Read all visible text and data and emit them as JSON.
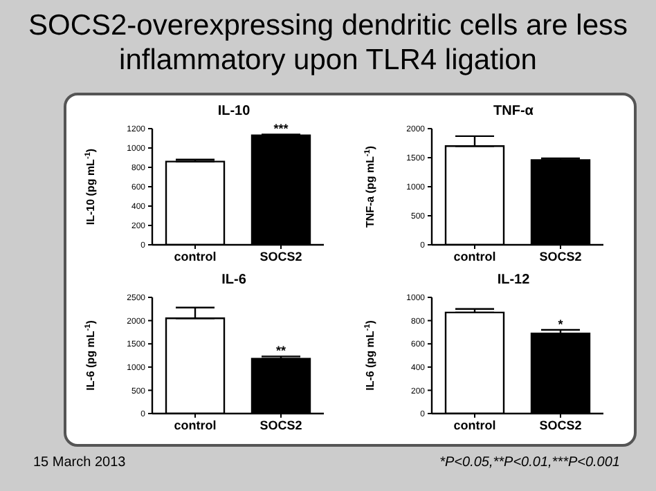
{
  "chart_data": [
    {
      "type": "bar",
      "title": "IL-10",
      "ylabel": "IL-10 (pg mL$^{-1}$)",
      "categories": [
        "control",
        "SOCS2"
      ],
      "values": [
        860,
        1130
      ],
      "colors": [
        "#ffffff",
        "#000000"
      ],
      "errors": [
        [
          860,
          880
        ],
        [
          1130,
          1140
        ]
      ],
      "ylim": [
        0,
        1200
      ],
      "yticks": [
        0,
        200,
        400,
        600,
        800,
        1000,
        1200
      ],
      "grid": false,
      "legend": false,
      "annotations": [
        "SOCS2-overexpressing dendritic cells are less inflammatory upon TLR4 ligation",
        {
          "text": "***",
          "x": "SOCS2",
          "y": 1140
        }
      ]
    },
    {
      "type": "bar",
      "title": "TNF-α",
      "ylabel": "TNF-a (pg mL$^{-1}$)",
      "categories": [
        "control",
        "SOCS2"
      ],
      "values": [
        1700,
        1460
      ],
      "colors": [
        "#ffffff",
        "#000000"
      ],
      "errors": [
        [
          1700,
          1870
        ],
        [
          1460,
          1490
        ]
      ],
      "ylim": [
        0,
        2000
      ],
      "yticks": [
        0,
        500,
        1000,
        1500,
        2000
      ],
      "grid": false,
      "legend": false
    },
    {
      "type": "bar",
      "title": "IL-6",
      "ylabel": "IL-6 (pg mL$^{-1}$)",
      "categories": [
        "control",
        "SOCS2"
      ],
      "values": [
        2050,
        1180
      ],
      "colors": [
        "#ffffff",
        "#000000"
      ],
      "errors": [
        [
          2050,
          2280
        ],
        [
          1180,
          1230
        ]
      ],
      "ylim": [
        0,
        2500
      ],
      "yticks": [
        0,
        500,
        1000,
        1500,
        2000,
        2500
      ],
      "grid": false,
      "legend": false,
      "annotations": [
        "15 March 2013",
        {
          "text": "**",
          "x": "SOCS2",
          "y": 1230
        }
      ]
    },
    {
      "type": "bar",
      "title": "IL-12",
      "ylabel": "IL-6 (pg mL$^{-1}$)",
      "categories": [
        "control",
        "SOCS2"
      ],
      "values": [
        870,
        690
      ],
      "colors": [
        "#ffffff",
        "#000000"
      ],
      "errors": [
        [
          870,
          900
        ],
        [
          690,
          720
        ]
      ],
      "ylim": [
        0,
        1000
      ],
      "yticks": [
        0,
        200,
        400,
        600,
        800,
        1000
      ],
      "grid": false,
      "legend": false,
      "annotations": [
        "*P<0.05,**P<0.01,***P<0.001",
        {
          "text": "*",
          "x": "SOCS2",
          "y": 720
        }
      ]
    }
  ]
}
